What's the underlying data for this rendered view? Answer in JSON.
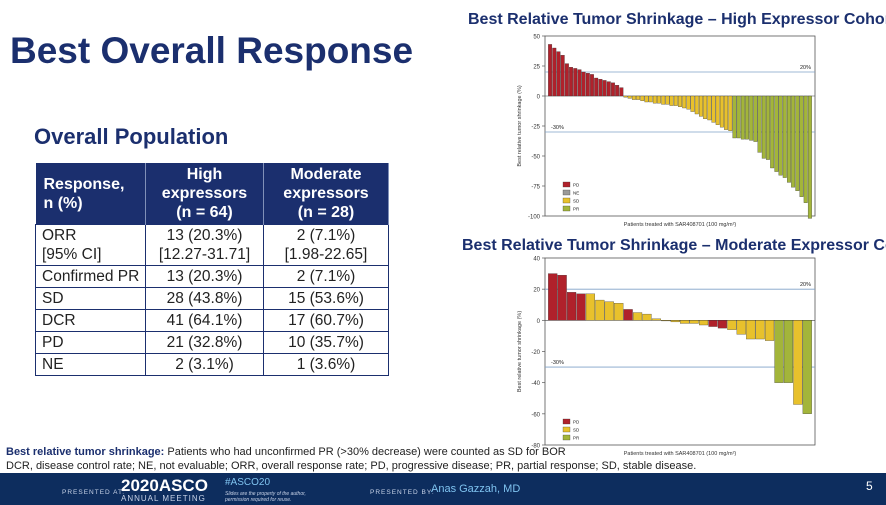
{
  "title": "Best Overall Response",
  "subtitle": "Overall Population",
  "table": {
    "headers": [
      "Response,\nn (%)",
      "High expressors\n(n = 64)",
      "Moderate\nexpressors\n(n = 28)"
    ],
    "rows": [
      [
        "ORR\n[95% CI]",
        "13 (20.3%)\n[12.27-31.71]",
        "2 (7.1%)\n[1.98-22.65]"
      ],
      [
        "Confirmed PR",
        "13 (20.3%)",
        "2 (7.1%)"
      ],
      [
        "SD",
        "28 (43.8%)",
        "15 (53.6%)"
      ],
      [
        "DCR",
        "41 (64.1%)",
        "17 (60.7%)"
      ],
      [
        "PD",
        "21 (32.8%)",
        "10 (35.7%)"
      ],
      [
        "NE",
        "2 (3.1%)",
        "1 (3.6%)"
      ]
    ]
  },
  "colors": {
    "PD": "#b0212b",
    "NE": "#9a9a9a",
    "SD": "#e8c12c",
    "PR": "#a3b53a",
    "navy": "#1b2f6e"
  },
  "chart_data": [
    {
      "type": "bar",
      "title": "Best Relative Tumor Shrinkage – High Expressor Cohort",
      "xlabel": "Patients treated with SAR408701 (100 mg/m²)",
      "ylabel": "Best relative tumor shrinkage (%)",
      "ylim": [
        -100,
        50
      ],
      "yticks": [
        50,
        25,
        0,
        -25,
        -50,
        -75,
        -100
      ],
      "ref_lines": [
        {
          "value": 20,
          "label": "20%"
        },
        {
          "value": -30,
          "label": "-30%"
        }
      ],
      "legend": [
        "PD",
        "NE",
        "SD",
        "PR"
      ],
      "values": [
        43,
        40,
        37,
        34,
        27,
        24,
        23,
        22,
        20,
        19,
        18,
        15,
        14,
        13,
        12,
        11,
        9,
        7,
        -1,
        -2,
        -3,
        -3,
        -4,
        -5,
        -5,
        -6,
        -6,
        -7,
        -7,
        -8,
        -8,
        -9,
        -10,
        -11,
        -13,
        -15,
        -17,
        -19,
        -20,
        -22,
        -24,
        -26,
        -28,
        -29,
        -35,
        -35,
        -36,
        -36,
        -37,
        -38,
        -47,
        -52,
        -53,
        -60,
        -63,
        -66,
        -68,
        -72,
        -76,
        -79,
        -84,
        -89,
        -102
      ],
      "categories": [
        "PD",
        "PD",
        "PD",
        "PD",
        "PD",
        "PD",
        "PD",
        "PD",
        "PD",
        "PD",
        "PD",
        "PD",
        "PD",
        "PD",
        "PD",
        "PD",
        "PD",
        "PD",
        "SD",
        "SD",
        "SD",
        "SD",
        "SD",
        "SD",
        "SD",
        "SD",
        "SD",
        "SD",
        "SD",
        "SD",
        "SD",
        "SD",
        "SD",
        "SD",
        "SD",
        "SD",
        "SD",
        "SD",
        "SD",
        "SD",
        "SD",
        "SD",
        "SD",
        "SD",
        "PR",
        "PR",
        "PR",
        "PR",
        "PR",
        "PR",
        "PR",
        "PR",
        "PR",
        "PR",
        "PR",
        "PR",
        "PR",
        "PR",
        "PR",
        "PR",
        "PR",
        "PR",
        "PR"
      ]
    },
    {
      "type": "bar",
      "title": "Best Relative Tumor Shrinkage – Moderate Expressor Cohort",
      "xlabel": "Patients treated with SAR408701 (100 mg/m²)",
      "ylabel": "Best relative tumor shrinkage (%)",
      "ylim": [
        -80,
        40
      ],
      "yticks": [
        40,
        20,
        0,
        -20,
        -40,
        -60,
        -80
      ],
      "ref_lines": [
        {
          "value": 20,
          "label": "20%"
        },
        {
          "value": -30,
          "label": "-30%"
        }
      ],
      "legend": [
        "PD",
        "SD",
        "PR"
      ],
      "values": [
        30,
        29,
        18,
        17,
        17,
        13,
        12,
        11,
        7,
        5,
        4,
        1,
        0,
        -1,
        -2,
        -2,
        -3,
        -4,
        -5,
        -6,
        -9,
        -12,
        -12,
        -13,
        -40,
        -40,
        -54,
        -60
      ],
      "categories": [
        "PD",
        "PD",
        "PD",
        "PD",
        "SD",
        "SD",
        "SD",
        "SD",
        "PD",
        "SD",
        "SD",
        "SD",
        "SD",
        "SD",
        "SD",
        "SD",
        "SD",
        "PD",
        "PD",
        "SD",
        "SD",
        "SD",
        "SD",
        "SD",
        "PR",
        "PR",
        "SD",
        "PR"
      ]
    }
  ],
  "footnote": {
    "bold": "Best relative tumor shrinkage:",
    "line1": " Patients who had unconfirmed PR (>30% decrease) were counted as SD for BOR",
    "line2": "DCR, disease control rate; NE, not evaluable; ORR, overall response rate; PD, progressive disease; PR, partial response; SD, stable disease."
  },
  "footer": {
    "presented_at": "PRESENTED AT:",
    "meeting": "2020ASCO",
    "meeting_sub": "ANNUAL MEETING",
    "hashtag": "#ASCO20",
    "permission": "Slides are the property of the author, permission required for reuse.",
    "presented_by": "PRESENTED BY:",
    "presenter": "Anas Gazzah, MD",
    "page_number": "5"
  }
}
